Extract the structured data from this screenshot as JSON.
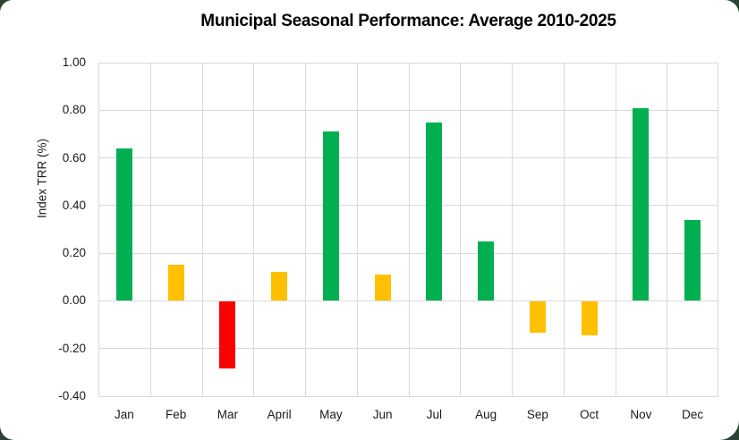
{
  "page": {
    "background_color": "#2c4233",
    "card_color": "#ffffff"
  },
  "chart": {
    "title": "Municipal Seasonal Performance: Average 2010-2025",
    "y_axis_title": "Index TRR (%)"
  },
  "chart_data": {
    "type": "bar",
    "title": "Municipal Seasonal Performance: Average 2010-2025",
    "xlabel": "",
    "ylabel": "Index TRR (%)",
    "categories": [
      "Jan",
      "Feb",
      "Mar",
      "April",
      "May",
      "Jun",
      "Jul",
      "Aug",
      "Sep",
      "Oct",
      "Nov",
      "Dec"
    ],
    "values": [
      0.64,
      0.15,
      -0.28,
      0.12,
      0.71,
      0.11,
      0.75,
      0.25,
      -0.13,
      -0.14,
      0.81,
      0.34
    ],
    "bar_color_names": [
      "green",
      "amber",
      "red",
      "amber",
      "green",
      "amber",
      "green",
      "green",
      "amber",
      "amber",
      "green",
      "green"
    ],
    "palette": {
      "green": "#00B050",
      "amber": "#FFC000",
      "red": "#FF0000"
    },
    "ylim": [
      -0.4,
      1.0
    ],
    "ytick_labels": [
      "1.00",
      "0.80",
      "0.60",
      "0.40",
      "0.20",
      "0.00",
      "-0.20",
      "-0.40"
    ],
    "ytick_values": [
      1.0,
      0.8,
      0.6,
      0.4,
      0.2,
      0.0,
      -0.2,
      -0.4
    ],
    "grid": "both",
    "gridline_color": "#D9D9D9",
    "legend": "none"
  }
}
